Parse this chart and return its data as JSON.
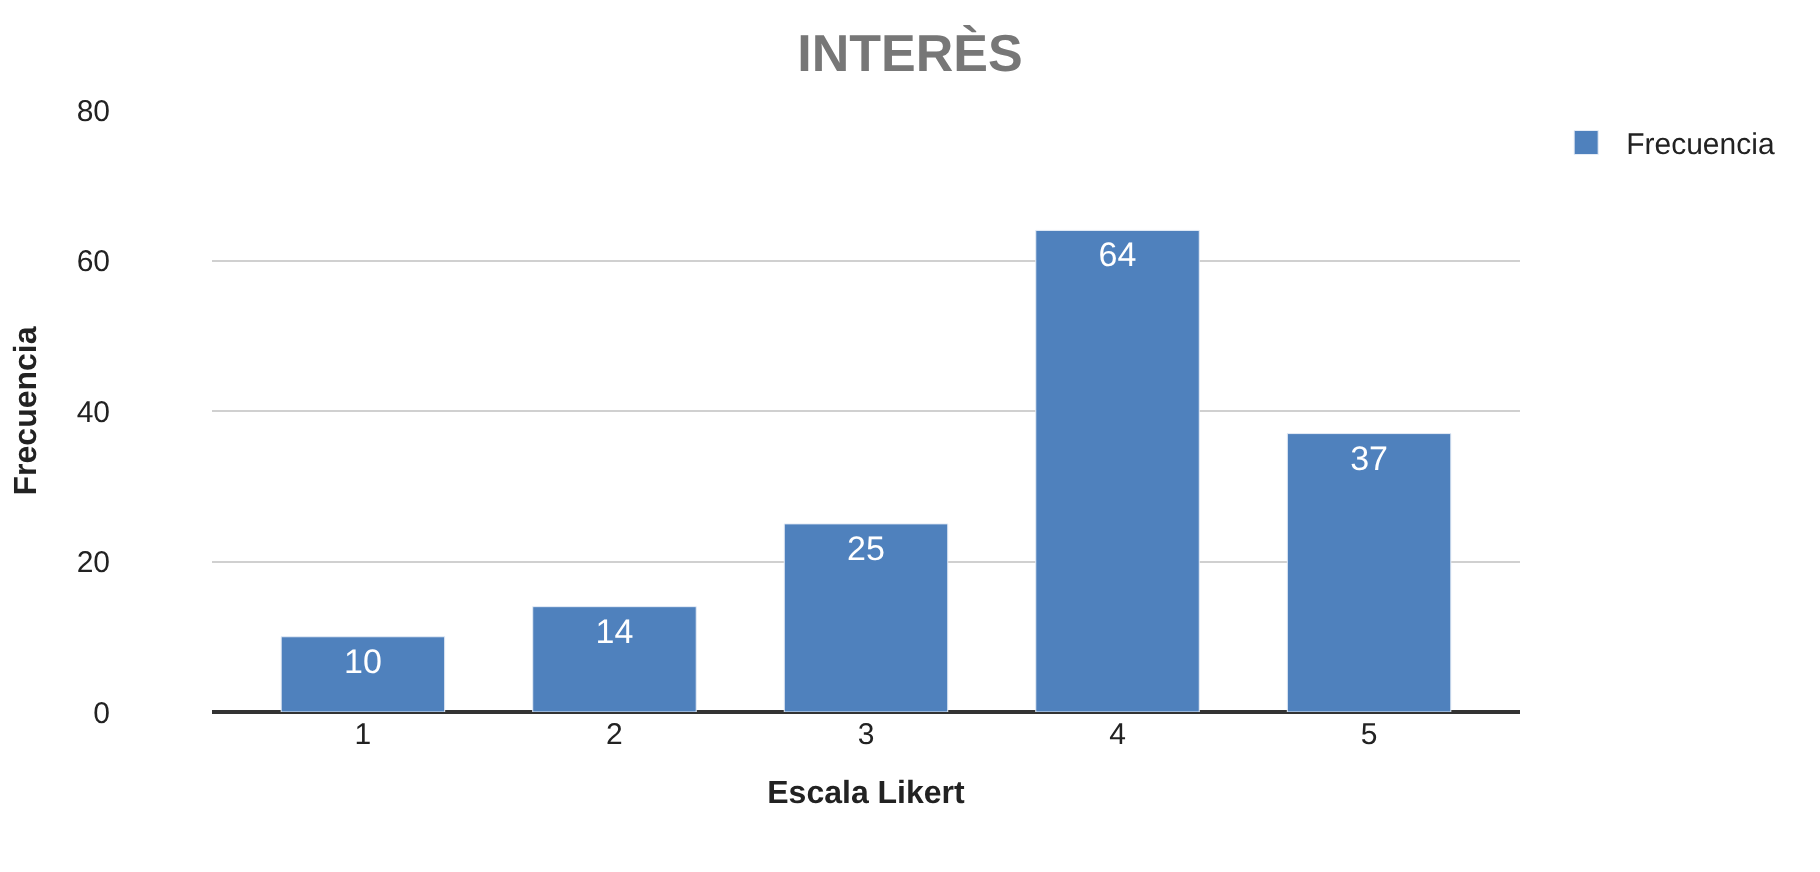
{
  "chart_data": {
    "type": "bar",
    "title": "INTERÈS",
    "xlabel": "Escala Likert",
    "ylabel": "Frecuencia",
    "categories": [
      "1",
      "2",
      "3",
      "4",
      "5"
    ],
    "series": [
      {
        "name": "Frecuencia",
        "color": "#4f81bd",
        "values": [
          10,
          14,
          25,
          64,
          37
        ]
      }
    ],
    "ylim": [
      0,
      80
    ],
    "yticks": [
      0,
      20,
      40,
      60,
      80
    ],
    "grid": "y",
    "legend": "top right",
    "data_labels": true
  }
}
